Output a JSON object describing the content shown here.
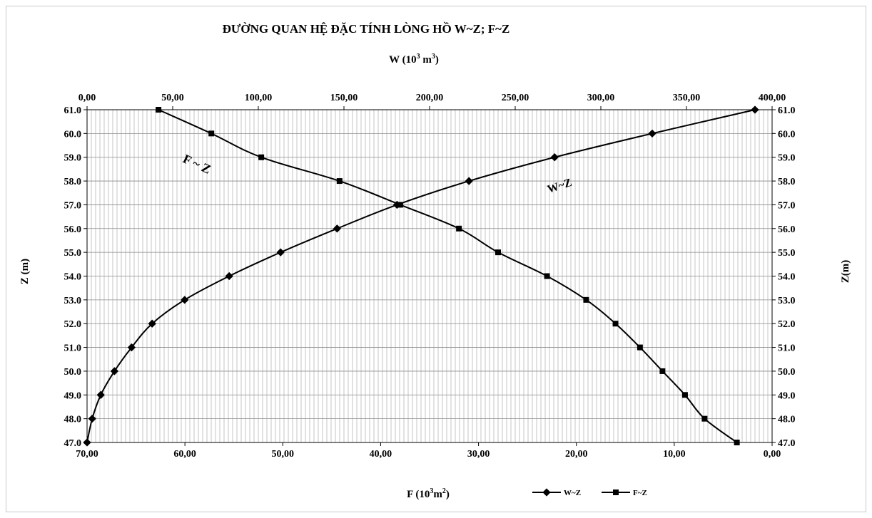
{
  "chart_data": {
    "type": "line",
    "title": "ĐƯỜNG  QUAN HỆ ĐẶC TÍNH LÒNG HỒ W~Z; F~Z",
    "top_axis": {
      "label_prefix": "W (10",
      "label_sup": "3",
      "label_mid": " m",
      "label_sup2": "3",
      "label_suffix": ")",
      "range": [
        0,
        400
      ],
      "ticks": [
        "0,00",
        "50,00",
        "100,00",
        "150,00",
        "200,00",
        "250,00",
        "300,00",
        "350,00",
        "400,00"
      ]
    },
    "bottom_axis": {
      "label_prefix": "F (10",
      "label_sup": "3",
      "label_mid": "m",
      "label_sup2": "2",
      "label_suffix": ")",
      "range": [
        70,
        0
      ],
      "ticks": [
        "70,00",
        "60,00",
        "50,00",
        "40,00",
        "30,00",
        "20,00",
        "10,00",
        "0,00"
      ]
    },
    "left_axis": {
      "label": "Z (m)",
      "range": [
        47,
        61
      ],
      "ticks": [
        "47.0",
        "48.0",
        "49.0",
        "50.0",
        "51.0",
        "52.0",
        "53.0",
        "54.0",
        "55.0",
        "56.0",
        "57.0",
        "58.0",
        "59.0",
        "60.0",
        "61.0"
      ]
    },
    "right_axis": {
      "label": "Z(m)",
      "range": [
        47,
        61
      ],
      "ticks": [
        "47.0",
        "48.0",
        "49.0",
        "50.0",
        "51.0",
        "52.0",
        "53.0",
        "54.0",
        "55.0",
        "56.0",
        "57.0",
        "58.0",
        "59.0",
        "60.0",
        "61.0"
      ]
    },
    "grid": true,
    "legend_position": "bottom",
    "series": [
      {
        "name": "W~Z",
        "axis": "top",
        "marker": "diamond",
        "color": "#000000",
        "points": [
          {
            "x": 0,
            "z": 47
          },
          {
            "x": 3,
            "z": 48
          },
          {
            "x": 8,
            "z": 49
          },
          {
            "x": 16,
            "z": 50
          },
          {
            "x": 26,
            "z": 51
          },
          {
            "x": 38,
            "z": 52
          },
          {
            "x": 57,
            "z": 53
          },
          {
            "x": 83,
            "z": 54
          },
          {
            "x": 113,
            "z": 55
          },
          {
            "x": 146,
            "z": 56
          },
          {
            "x": 181,
            "z": 57
          },
          {
            "x": 223,
            "z": 58
          },
          {
            "x": 273,
            "z": 59
          },
          {
            "x": 330,
            "z": 60
          },
          {
            "x": 390,
            "z": 61
          }
        ]
      },
      {
        "name": "F~Z",
        "axis": "bottom",
        "marker": "square",
        "color": "#000000",
        "points": [
          {
            "x": 3.6,
            "z": 47
          },
          {
            "x": 6.9,
            "z": 48
          },
          {
            "x": 8.9,
            "z": 49
          },
          {
            "x": 11.2,
            "z": 50
          },
          {
            "x": 13.5,
            "z": 51
          },
          {
            "x": 16.0,
            "z": 52
          },
          {
            "x": 19.0,
            "z": 53
          },
          {
            "x": 23.0,
            "z": 54
          },
          {
            "x": 28.0,
            "z": 55
          },
          {
            "x": 32.0,
            "z": 56
          },
          {
            "x": 38.0,
            "z": 57
          },
          {
            "x": 44.2,
            "z": 58
          },
          {
            "x": 52.2,
            "z": 59
          },
          {
            "x": 57.3,
            "z": 60
          },
          {
            "x": 62.7,
            "z": 61
          }
        ]
      }
    ],
    "annotations": [
      {
        "text": "F ~ Z",
        "series": "F~Z"
      },
      {
        "text": "W~Z",
        "series": "W~Z"
      }
    ]
  }
}
